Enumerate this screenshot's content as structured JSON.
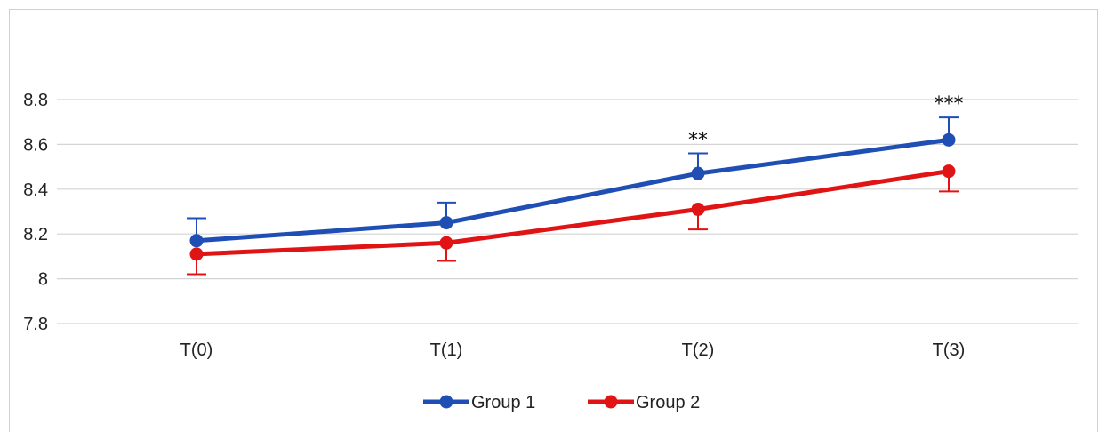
{
  "chart_data": {
    "type": "line",
    "title": "",
    "xlabel": "",
    "ylabel": "",
    "categories": [
      "T(0)",
      "T(1)",
      "T(2)",
      "T(3)"
    ],
    "ylim": [
      7.8,
      8.8
    ],
    "yticks": [
      7.8,
      8,
      8.2,
      8.4,
      8.6,
      8.8
    ],
    "ytick_labels": [
      "7.8",
      "8",
      "8.2",
      "8.4",
      "8.6",
      "8.8"
    ],
    "grid": true,
    "legend_position": "bottom",
    "series": [
      {
        "name": "Group 1",
        "color": "#1f4fb4",
        "values": [
          8.17,
          8.25,
          8.47,
          8.62
        ],
        "error": [
          0.1,
          0.09,
          0.09,
          0.1
        ],
        "error_direction": "up"
      },
      {
        "name": "Group 2",
        "color": "#e01414",
        "values": [
          8.11,
          8.16,
          8.31,
          8.48
        ],
        "error": [
          0.09,
          0.08,
          0.09,
          0.09
        ],
        "error_direction": "down"
      }
    ],
    "annotations": [
      {
        "category": "T(2)",
        "text": "**"
      },
      {
        "category": "T(3)",
        "text": "***"
      }
    ]
  }
}
